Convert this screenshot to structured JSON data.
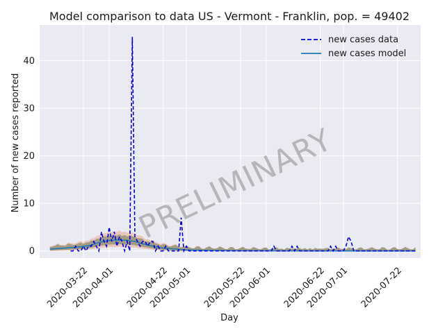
{
  "chart_data": {
    "type": "line",
    "title": "Model comparison to data US - Vermont - Franklin, pop. = 49402",
    "xlabel": "Day",
    "ylabel": "Number of new cases reported",
    "watermark": "PRELIMINARY",
    "ylim": [
      -1.5,
      47.5
    ],
    "xlim": [
      "2020-03-05",
      "2020-07-31"
    ],
    "yticks": [
      0,
      10,
      20,
      30,
      40
    ],
    "xticks": [
      "2020-03-22",
      "2020-04-01",
      "2020-04-22",
      "2020-05-01",
      "2020-05-22",
      "2020-06-01",
      "2020-06-22",
      "2020-07-01",
      "2020-07-22"
    ],
    "grid": true,
    "legend_position": "top-right",
    "colors": {
      "data": "#0000dd",
      "model": "#1f77b4",
      "band_outer": "#e8b8a8",
      "band_inner": "#8c8c6e",
      "background": "#eaeaf2",
      "grid": "#ffffff"
    },
    "series": [
      {
        "name": "new cases data",
        "style": "dashed",
        "points": [
          [
            "2020-03-17",
            0
          ],
          [
            "2020-03-18",
            0
          ],
          [
            "2020-03-19",
            1
          ],
          [
            "2020-03-20",
            0
          ],
          [
            "2020-03-21",
            0
          ],
          [
            "2020-03-22",
            1
          ],
          [
            "2020-03-23",
            0
          ],
          [
            "2020-03-24",
            1
          ],
          [
            "2020-03-25",
            1
          ],
          [
            "2020-03-26",
            2
          ],
          [
            "2020-03-27",
            1
          ],
          [
            "2020-03-28",
            0
          ],
          [
            "2020-03-29",
            4
          ],
          [
            "2020-03-30",
            2
          ],
          [
            "2020-03-31",
            1
          ],
          [
            "2020-04-01",
            5
          ],
          [
            "2020-04-02",
            2
          ],
          [
            "2020-04-03",
            4
          ],
          [
            "2020-04-04",
            1
          ],
          [
            "2020-04-05",
            3
          ],
          [
            "2020-04-06",
            2
          ],
          [
            "2020-04-07",
            0
          ],
          [
            "2020-04-08",
            2
          ],
          [
            "2020-04-09",
            0
          ],
          [
            "2020-04-10",
            45
          ],
          [
            "2020-04-11",
            3
          ],
          [
            "2020-04-12",
            2
          ],
          [
            "2020-04-13",
            1
          ],
          [
            "2020-04-14",
            2
          ],
          [
            "2020-04-15",
            2
          ],
          [
            "2020-04-16",
            1
          ],
          [
            "2020-04-17",
            2
          ],
          [
            "2020-04-18",
            2
          ],
          [
            "2020-04-19",
            0
          ],
          [
            "2020-04-20",
            1
          ],
          [
            "2020-04-21",
            0
          ],
          [
            "2020-04-22",
            0
          ],
          [
            "2020-04-23",
            1
          ],
          [
            "2020-04-24",
            0
          ],
          [
            "2020-04-25",
            0
          ],
          [
            "2020-04-26",
            0
          ],
          [
            "2020-04-27",
            0
          ],
          [
            "2020-04-28",
            0
          ],
          [
            "2020-04-29",
            7
          ],
          [
            "2020-04-30",
            0
          ],
          [
            "2020-05-01",
            1
          ],
          [
            "2020-05-02",
            0
          ],
          [
            "2020-05-10",
            0
          ],
          [
            "2020-05-20",
            0
          ],
          [
            "2020-06-01",
            0
          ],
          [
            "2020-06-03",
            0
          ],
          [
            "2020-06-04",
            1
          ],
          [
            "2020-06-05",
            0
          ],
          [
            "2020-06-10",
            0
          ],
          [
            "2020-06-11",
            1
          ],
          [
            "2020-06-12",
            0
          ],
          [
            "2020-06-13",
            1
          ],
          [
            "2020-06-14",
            0
          ],
          [
            "2020-06-25",
            0
          ],
          [
            "2020-06-26",
            1
          ],
          [
            "2020-06-27",
            0
          ],
          [
            "2020-06-28",
            1
          ],
          [
            "2020-06-29",
            0
          ],
          [
            "2020-07-01",
            0
          ],
          [
            "2020-07-02",
            1
          ],
          [
            "2020-07-03",
            3
          ],
          [
            "2020-07-04",
            2
          ],
          [
            "2020-07-05",
            0
          ],
          [
            "2020-07-29",
            0
          ]
        ]
      },
      {
        "name": "new cases model",
        "style": "solid",
        "points": [
          [
            "2020-03-09",
            0.4
          ],
          [
            "2020-03-15",
            0.6
          ],
          [
            "2020-03-20",
            0.8
          ],
          [
            "2020-03-25",
            1.2
          ],
          [
            "2020-03-28",
            1.8
          ],
          [
            "2020-04-01",
            2.2
          ],
          [
            "2020-04-05",
            2.3
          ],
          [
            "2020-04-08",
            2.2
          ],
          [
            "2020-04-11",
            2.0
          ],
          [
            "2020-04-14",
            1.5
          ],
          [
            "2020-04-18",
            1.0
          ],
          [
            "2020-04-22",
            0.6
          ],
          [
            "2020-04-27",
            0.4
          ],
          [
            "2020-05-01",
            0.2
          ],
          [
            "2020-05-10",
            0.1
          ],
          [
            "2020-05-20",
            0.05
          ],
          [
            "2020-06-01",
            0.02
          ],
          [
            "2020-07-29",
            0.0
          ]
        ]
      }
    ]
  }
}
